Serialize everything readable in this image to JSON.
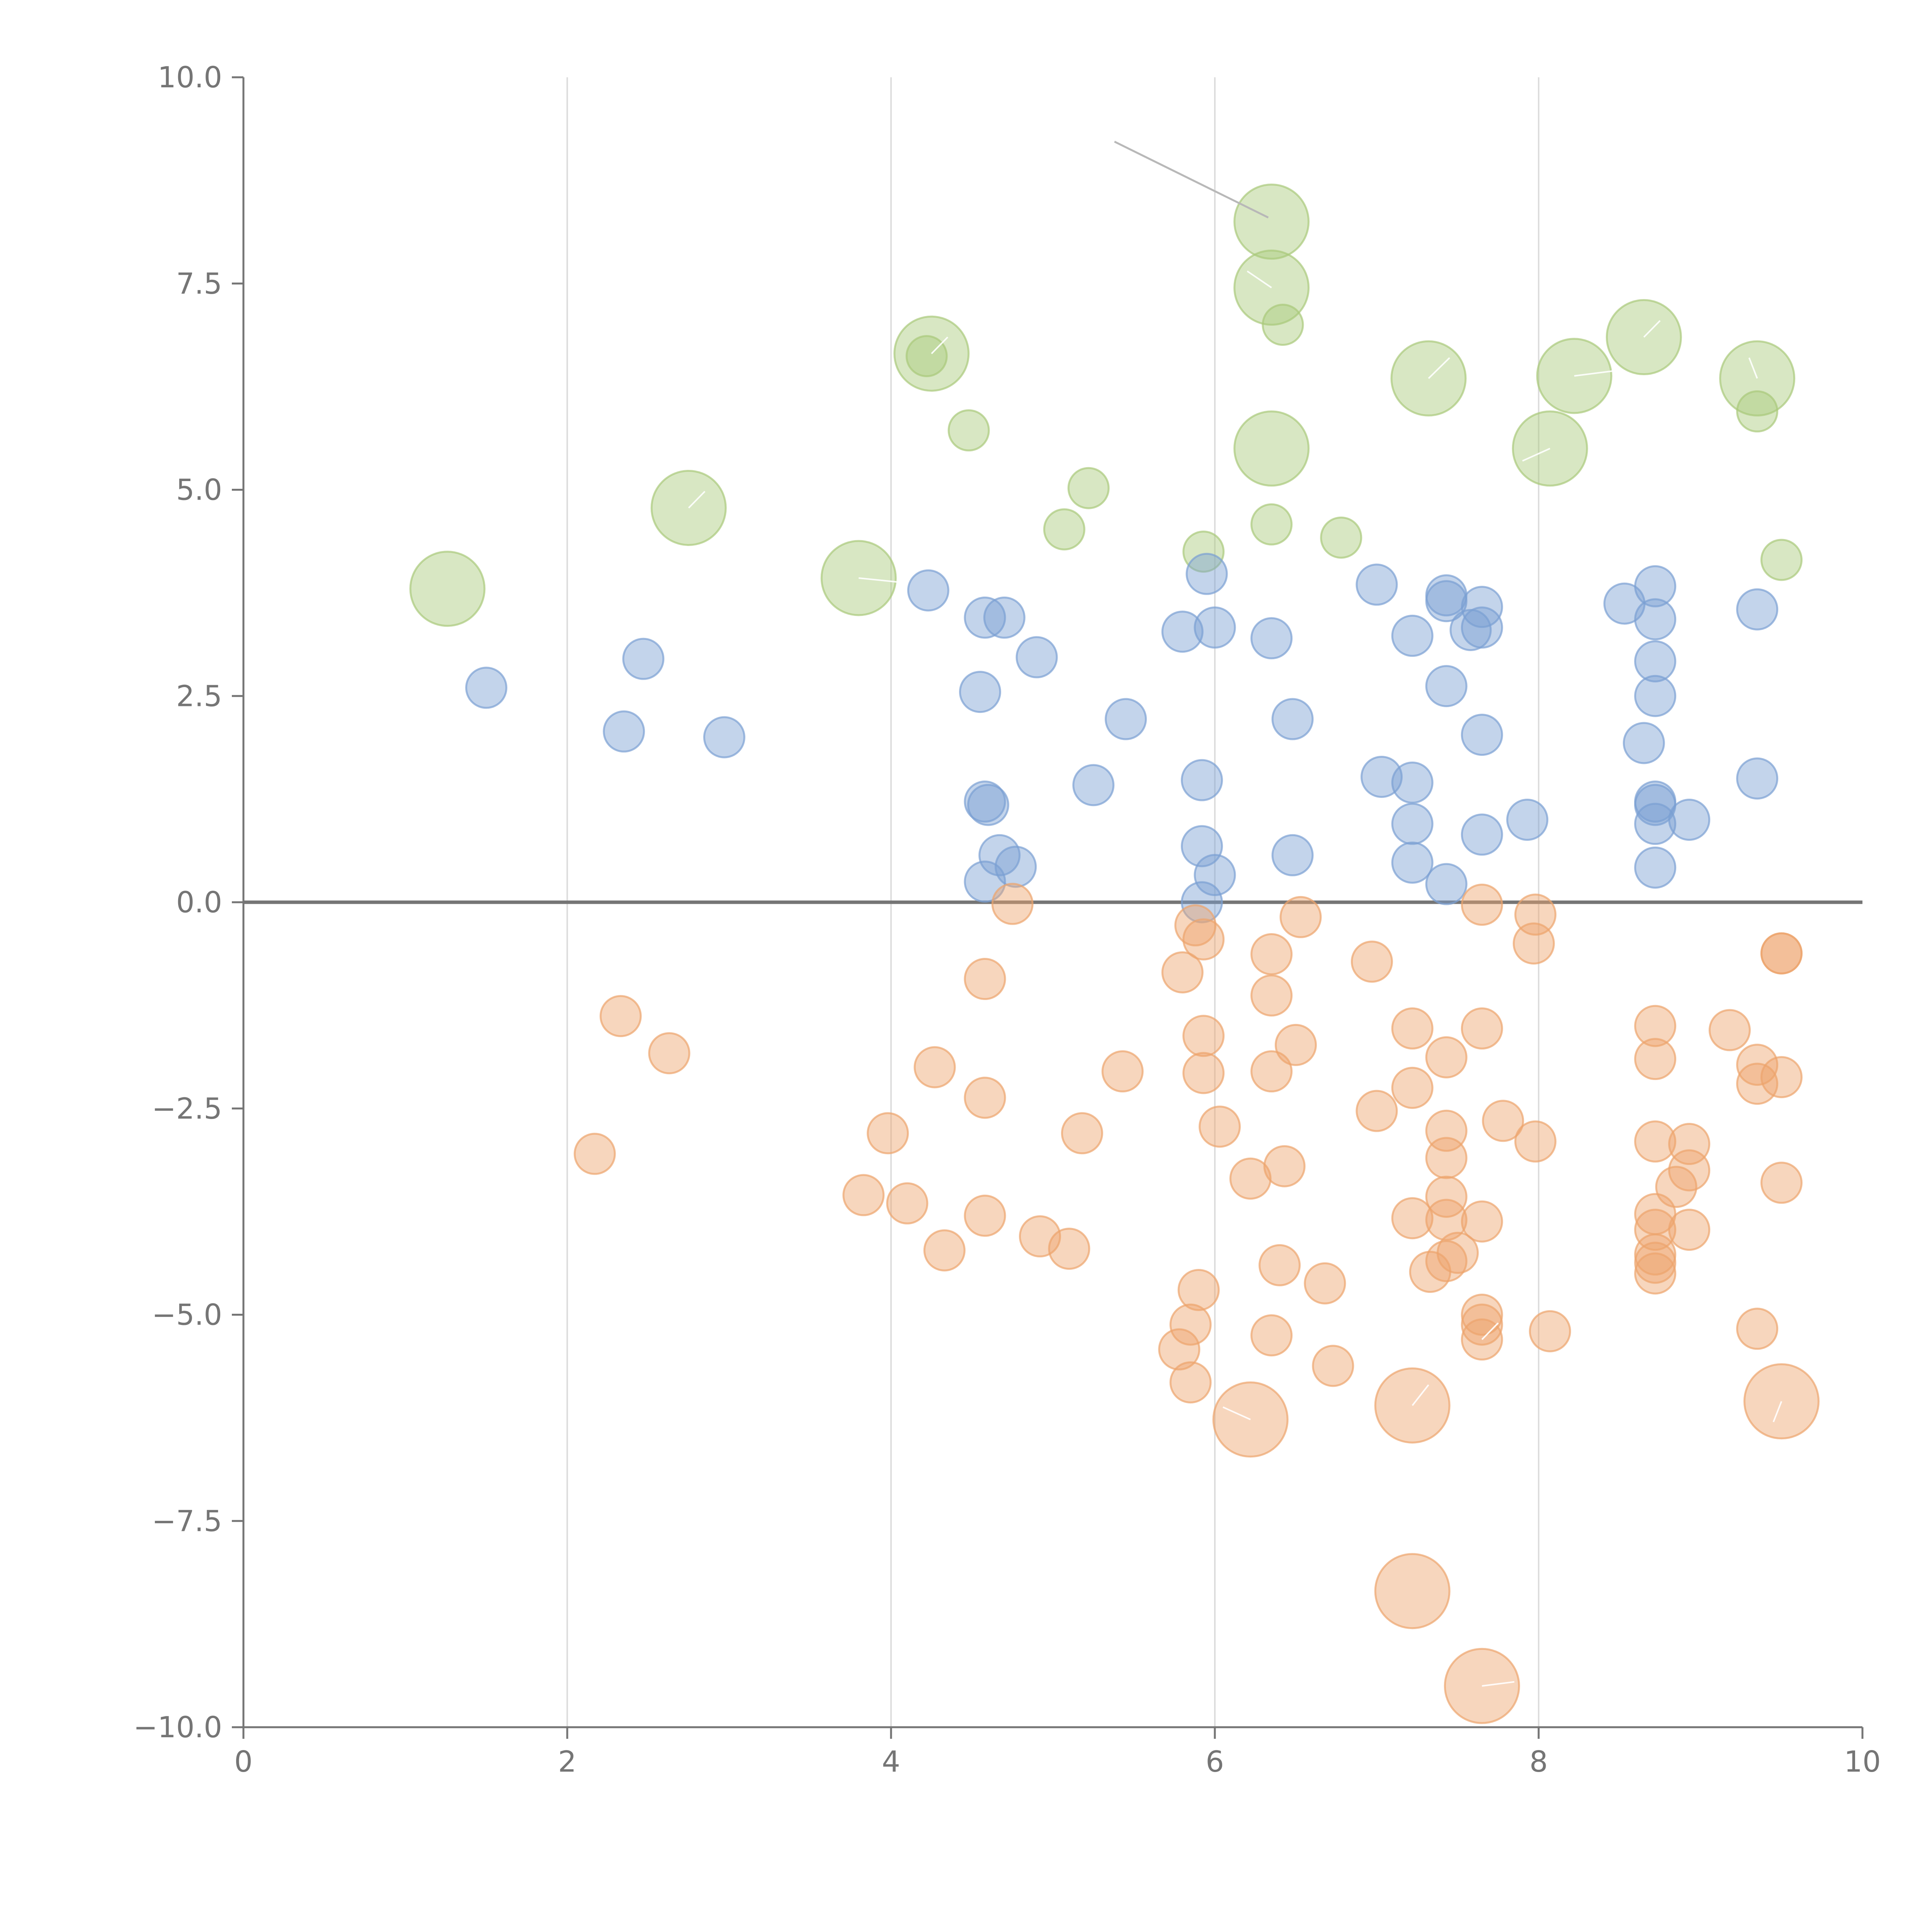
{
  "chart_data": {
    "type": "scatter",
    "title": "",
    "xlabel": "",
    "ylabel": "",
    "xlim": [
      0,
      10
    ],
    "ylim": [
      -10,
      10
    ],
    "x_ticks": [
      0,
      2,
      4,
      6,
      8,
      10
    ],
    "y_ticks": [
      -10,
      -7.5,
      -5,
      -2.5,
      0,
      2.5,
      5,
      7.5,
      10
    ],
    "x_tick_labels": [
      "0",
      "2",
      "4",
      "6",
      "8",
      "10"
    ],
    "y_tick_labels": [
      "−10.0",
      "−7.5",
      "−5.0",
      "−2.5",
      "0.0",
      "2.5",
      "5.0",
      "7.5",
      "10.0"
    ],
    "grid": "vertical",
    "reference_line_y": 0,
    "point_format": "[x, y, relative_size]",
    "series": [
      {
        "name": "green",
        "color": "#a9c97a",
        "points": [
          [
            6.35,
            8.25,
            2
          ],
          [
            6.35,
            7.45,
            2
          ],
          [
            6.42,
            7.0,
            1
          ],
          [
            4.25,
            6.65,
            2
          ],
          [
            4.22,
            6.62,
            1
          ],
          [
            4.48,
            5.72,
            1
          ],
          [
            6.35,
            5.5,
            2
          ],
          [
            7.32,
            6.35,
            2
          ],
          [
            8.22,
            6.38,
            2
          ],
          [
            8.65,
            6.85,
            2
          ],
          [
            9.35,
            6.35,
            2
          ],
          [
            9.35,
            5.95,
            1
          ],
          [
            8.07,
            5.5,
            2
          ],
          [
            2.75,
            4.78,
            2
          ],
          [
            5.22,
            5.02,
            1
          ],
          [
            5.07,
            4.52,
            1
          ],
          [
            6.35,
            4.58,
            1
          ],
          [
            5.93,
            4.25,
            1
          ],
          [
            6.78,
            4.42,
            1
          ],
          [
            3.8,
            3.93,
            2
          ],
          [
            1.26,
            3.8,
            2
          ],
          [
            9.5,
            4.15,
            1
          ]
        ]
      },
      {
        "name": "blue",
        "color": "#7b9fd3",
        "points": [
          [
            1.5,
            2.6,
            1
          ],
          [
            2.47,
            2.95,
            1
          ],
          [
            2.35,
            2.07,
            1
          ],
          [
            2.97,
            2.0,
            1
          ],
          [
            4.23,
            3.78,
            1
          ],
          [
            4.58,
            3.45,
            1
          ],
          [
            4.7,
            3.45,
            1
          ],
          [
            4.9,
            2.97,
            1
          ],
          [
            4.55,
            2.55,
            1
          ],
          [
            5.45,
            2.22,
            1
          ],
          [
            5.25,
            1.42,
            1
          ],
          [
            4.58,
            1.22,
            1
          ],
          [
            4.6,
            1.18,
            1
          ],
          [
            4.67,
            0.57,
            1
          ],
          [
            4.77,
            0.43,
            1
          ],
          [
            4.58,
            0.25,
            1
          ],
          [
            5.8,
            3.28,
            1
          ],
          [
            5.95,
            3.98,
            1
          ],
          [
            6.0,
            3.33,
            1
          ],
          [
            6.35,
            3.2,
            1
          ],
          [
            6.48,
            2.22,
            1
          ],
          [
            5.92,
            1.48,
            1
          ],
          [
            5.92,
            0.68,
            1
          ],
          [
            6.0,
            0.33,
            1
          ],
          [
            5.92,
            0.0,
            1
          ],
          [
            6.48,
            0.57,
            1
          ],
          [
            7.0,
            3.85,
            1
          ],
          [
            7.22,
            3.23,
            1
          ],
          [
            7.43,
            3.72,
            1
          ],
          [
            7.43,
            3.65,
            1
          ],
          [
            7.65,
            3.58,
            1
          ],
          [
            7.58,
            3.3,
            1
          ],
          [
            7.65,
            3.33,
            1
          ],
          [
            7.43,
            2.62,
            1
          ],
          [
            7.65,
            2.03,
            1
          ],
          [
            7.03,
            1.52,
            1
          ],
          [
            7.22,
            1.45,
            1
          ],
          [
            7.22,
            0.95,
            1
          ],
          [
            7.22,
            0.48,
            1
          ],
          [
            7.43,
            0.22,
            1
          ],
          [
            7.65,
            0.82,
            1
          ],
          [
            7.93,
            1.0,
            1
          ],
          [
            8.53,
            3.62,
            1
          ],
          [
            8.72,
            3.83,
            1
          ],
          [
            8.72,
            3.43,
            1
          ],
          [
            8.72,
            2.92,
            1
          ],
          [
            8.72,
            2.5,
            1
          ],
          [
            8.65,
            1.93,
            1
          ],
          [
            8.72,
            1.22,
            1
          ],
          [
            8.72,
            1.18,
            1
          ],
          [
            8.72,
            0.95,
            1
          ],
          [
            8.93,
            1.0,
            1
          ],
          [
            8.72,
            0.42,
            1
          ],
          [
            9.35,
            3.55,
            1
          ],
          [
            9.35,
            1.5,
            1
          ]
        ]
      },
      {
        "name": "orange",
        "color": "#eda46c",
        "points": [
          [
            2.33,
            -1.38,
            1
          ],
          [
            2.63,
            -1.83,
            1
          ],
          [
            2.17,
            -3.05,
            1
          ],
          [
            3.83,
            -3.55,
            1
          ],
          [
            4.1,
            -3.65,
            1
          ],
          [
            3.98,
            -2.8,
            1
          ],
          [
            4.27,
            -2.0,
            1
          ],
          [
            4.33,
            -4.22,
            1
          ],
          [
            4.58,
            -0.93,
            1
          ],
          [
            4.58,
            -2.37,
            1
          ],
          [
            4.58,
            -3.8,
            1
          ],
          [
            4.75,
            -0.02,
            1
          ],
          [
            4.92,
            -4.05,
            1
          ],
          [
            5.1,
            -4.2,
            1
          ],
          [
            5.18,
            -2.8,
            1
          ],
          [
            5.43,
            -2.05,
            1
          ],
          [
            5.88,
            -0.28,
            1
          ],
          [
            5.93,
            -0.45,
            1
          ],
          [
            5.8,
            -0.85,
            1
          ],
          [
            5.93,
            -1.62,
            1
          ],
          [
            5.93,
            -2.07,
            1
          ],
          [
            6.03,
            -2.72,
            1
          ],
          [
            5.9,
            -4.7,
            1
          ],
          [
            5.85,
            -5.12,
            1
          ],
          [
            5.78,
            -5.42,
            1
          ],
          [
            5.85,
            -5.82,
            1
          ],
          [
            6.35,
            -0.63,
            1
          ],
          [
            6.35,
            -1.13,
            1
          ],
          [
            6.35,
            -2.05,
            1
          ],
          [
            6.5,
            -1.73,
            1
          ],
          [
            6.53,
            -0.18,
            1
          ],
          [
            6.22,
            -3.35,
            1
          ],
          [
            6.43,
            -3.2,
            1
          ],
          [
            6.4,
            -4.4,
            1
          ],
          [
            6.35,
            -5.25,
            1
          ],
          [
            6.68,
            -4.62,
            1
          ],
          [
            6.73,
            -5.62,
            1
          ],
          [
            6.22,
            -6.27,
            2
          ],
          [
            6.97,
            -0.72,
            1
          ],
          [
            7.0,
            -2.53,
            1
          ],
          [
            7.22,
            -1.53,
            1
          ],
          [
            7.22,
            -2.25,
            1
          ],
          [
            7.22,
            -3.83,
            1
          ],
          [
            7.43,
            -1.88,
            1
          ],
          [
            7.43,
            -2.77,
            1
          ],
          [
            7.43,
            -3.1,
            1
          ],
          [
            7.43,
            -3.57,
            1
          ],
          [
            7.43,
            -3.85,
            1
          ],
          [
            7.43,
            -4.35,
            1
          ],
          [
            7.5,
            -4.25,
            1
          ],
          [
            7.33,
            -4.48,
            1
          ],
          [
            7.65,
            -0.03,
            1
          ],
          [
            7.65,
            -1.53,
            1
          ],
          [
            7.78,
            -2.65,
            1
          ],
          [
            7.65,
            -3.87,
            1
          ],
          [
            7.65,
            -5.0,
            1
          ],
          [
            7.65,
            -5.12,
            1
          ],
          [
            7.65,
            -5.3,
            1
          ],
          [
            7.22,
            -6.1,
            2
          ],
          [
            7.22,
            -8.35,
            2
          ],
          [
            7.65,
            -9.5,
            2
          ],
          [
            7.98,
            -0.15,
            1
          ],
          [
            7.97,
            -0.5,
            1
          ],
          [
            7.98,
            -2.9,
            1
          ],
          [
            8.07,
            -5.2,
            1
          ],
          [
            8.72,
            -1.5,
            1
          ],
          [
            8.72,
            -1.9,
            1
          ],
          [
            8.72,
            -2.9,
            1
          ],
          [
            8.72,
            -3.78,
            1
          ],
          [
            8.72,
            -3.97,
            1
          ],
          [
            8.72,
            -4.27,
            1
          ],
          [
            8.72,
            -4.37,
            1
          ],
          [
            8.72,
            -4.5,
            1
          ],
          [
            8.85,
            -3.45,
            1
          ],
          [
            8.93,
            -2.93,
            1
          ],
          [
            8.93,
            -3.25,
            1
          ],
          [
            8.93,
            -3.97,
            1
          ],
          [
            9.18,
            -1.55,
            1
          ],
          [
            9.35,
            -1.97,
            1
          ],
          [
            9.35,
            -2.2,
            1
          ],
          [
            9.35,
            -5.17,
            1
          ],
          [
            9.5,
            -0.62,
            1
          ],
          [
            9.5,
            -0.62,
            1
          ],
          [
            9.5,
            -2.12,
            1
          ],
          [
            9.5,
            -3.4,
            1
          ],
          [
            9.5,
            -6.05,
            2
          ]
        ]
      }
    ]
  }
}
